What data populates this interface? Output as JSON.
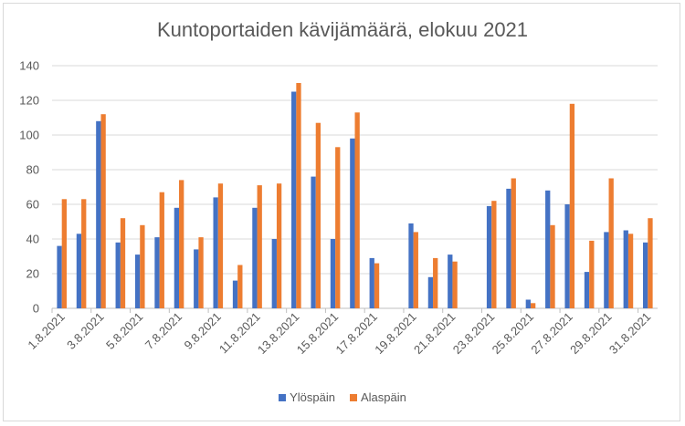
{
  "chart_data": {
    "type": "bar",
    "title": "Kuntoportaiden kävijämäärä, elokuu 2021",
    "xlabel": "",
    "ylabel": "",
    "ylim": [
      0,
      140
    ],
    "yticks": [
      0,
      20,
      40,
      60,
      80,
      100,
      120,
      140
    ],
    "grid": true,
    "legend_position": "bottom",
    "categories": [
      "1.8.2021",
      "2.8.2021",
      "3.8.2021",
      "4.8.2021",
      "5.8.2021",
      "6.8.2021",
      "7.8.2021",
      "8.8.2021",
      "9.8.2021",
      "10.8.2021",
      "11.8.2021",
      "12.8.2021",
      "13.8.2021",
      "14.8.2021",
      "15.8.2021",
      "16.8.2021",
      "17.8.2021",
      "18.8.2021",
      "19.8.2021",
      "20.8.2021",
      "21.8.2021",
      "22.8.2021",
      "23.8.2021",
      "24.8.2021",
      "25.8.2021",
      "26.8.2021",
      "27.8.2021",
      "28.8.2021",
      "29.8.2021",
      "30.8.2021",
      "31.8.2021"
    ],
    "tick_labels": [
      "1.8.2021",
      "3.8.2021",
      "5.8.2021",
      "7.8.2021",
      "9.8.2021",
      "11.8.2021",
      "13.8.2021",
      "15.8.2021",
      "17.8.2021",
      "19.8.2021",
      "21.8.2021",
      "23.8.2021",
      "25.8.2021",
      "27.8.2021",
      "29.8.2021",
      "31.8.2021"
    ],
    "series": [
      {
        "name": "Ylöspäin",
        "color": "#4472c4",
        "values": [
          36,
          43,
          108,
          38,
          31,
          41,
          58,
          34,
          64,
          16,
          58,
          40,
          125,
          76,
          40,
          98,
          29,
          null,
          49,
          18,
          31,
          null,
          59,
          69,
          5,
          68,
          60,
          21,
          44,
          45,
          38
        ]
      },
      {
        "name": "Alaspäin",
        "color": "#ed7d31",
        "values": [
          63,
          63,
          112,
          52,
          48,
          67,
          74,
          41,
          72,
          25,
          71,
          72,
          130,
          107,
          93,
          113,
          26,
          null,
          44,
          29,
          27,
          null,
          62,
          75,
          3,
          48,
          118,
          39,
          75,
          43,
          52
        ]
      }
    ]
  }
}
